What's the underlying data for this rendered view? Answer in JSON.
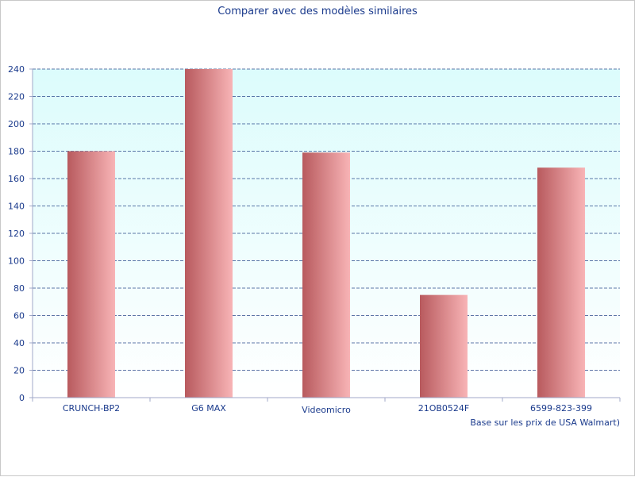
{
  "chart_data": {
    "type": "bar",
    "title": "Comparer avec des modèles similaires",
    "note": "Base sur les prix de USA Walmart)",
    "categories": [
      "CRUNCH-BP2",
      "G6 MAX",
      "Videomicro",
      "21OB0524F",
      "6599-823-399"
    ],
    "values": [
      180,
      240,
      179,
      75,
      168
    ],
    "ylim": [
      0,
      240
    ],
    "yticks": [
      0,
      20,
      40,
      60,
      80,
      100,
      120,
      140,
      160,
      180,
      200,
      220,
      240
    ],
    "grid": true,
    "xlabel": "",
    "ylabel": ""
  },
  "colors": {
    "bar_dark": "#b85a5e",
    "bar_light": "#f8b4b6",
    "plot_top": "#dcfcfc",
    "plot_bottom": "#ffffff",
    "grid": "#2a4a8a",
    "axis": "#a0a8c8",
    "text": "#1a3a8c"
  }
}
